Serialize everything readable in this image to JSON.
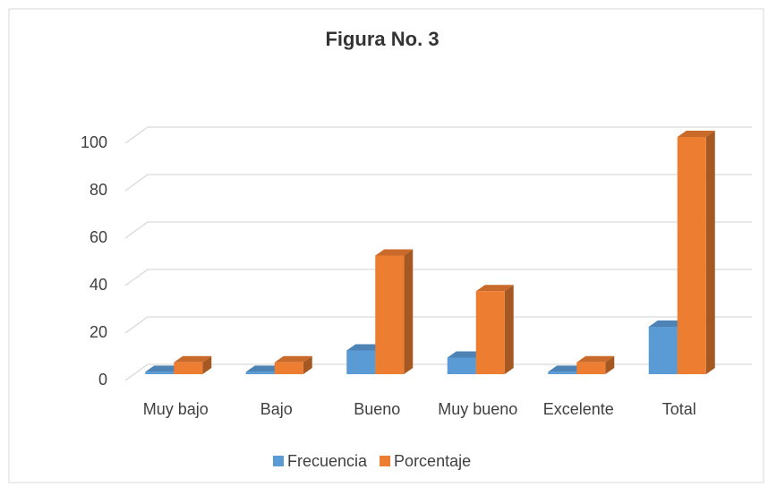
{
  "chart_data": {
    "type": "bar3d",
    "title": "Figura No. 3",
    "categories": [
      "Muy bajo",
      "Bajo",
      "Bueno",
      "Muy bueno",
      "Excelente",
      "Total"
    ],
    "series": [
      {
        "name": "Frecuencia",
        "color": "#5b9bd5",
        "values": [
          1,
          1,
          10,
          7,
          1,
          20
        ]
      },
      {
        "name": "Porcentaje",
        "color": "#ed7d31",
        "values": [
          5,
          5,
          50,
          35,
          5,
          100
        ]
      }
    ],
    "ylim": [
      0,
      100
    ],
    "yticks": [
      0,
      20,
      40,
      60,
      80,
      100
    ],
    "grid": true,
    "legend": "bottom"
  }
}
